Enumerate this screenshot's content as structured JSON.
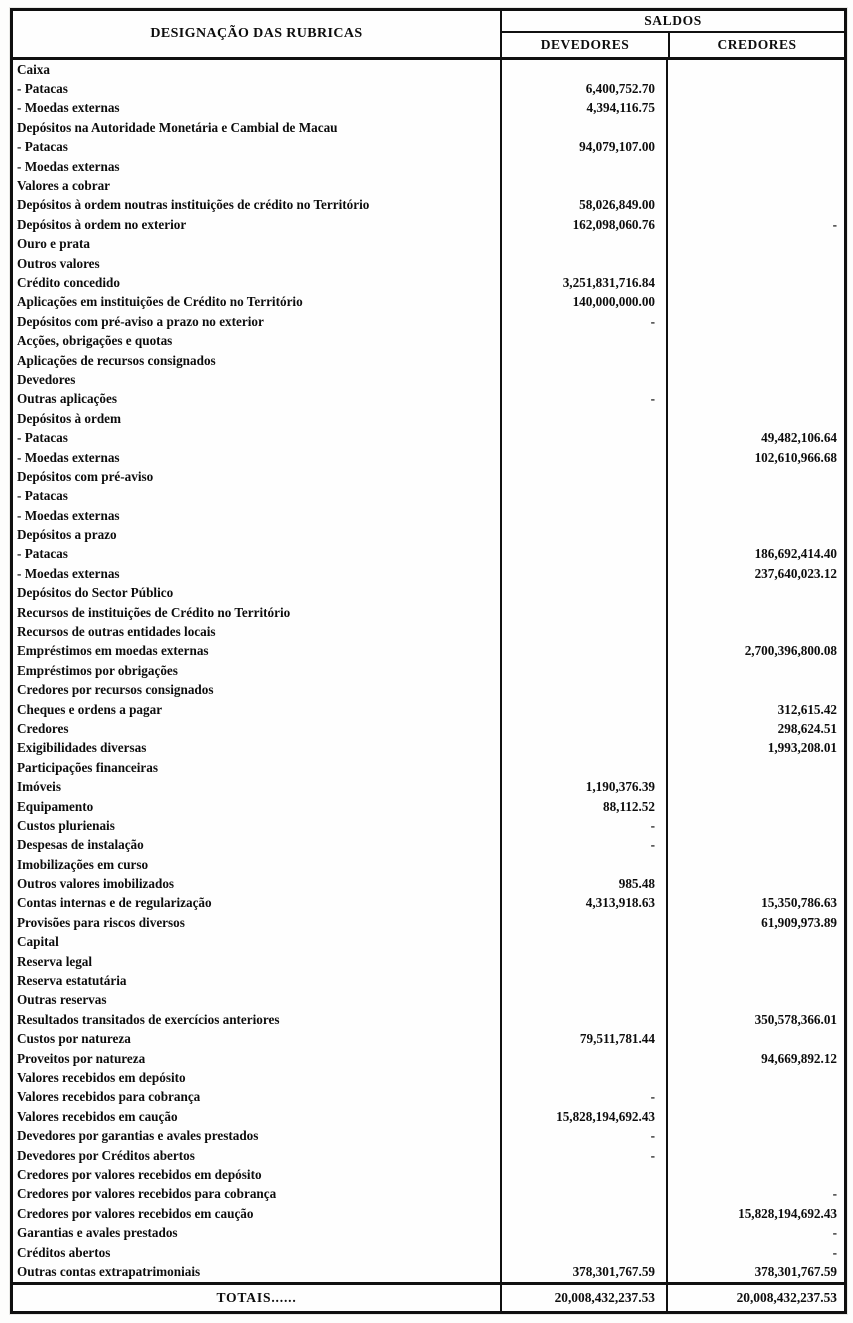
{
  "header": {
    "col_rubricas": "DESIGNAÇÃO DAS RUBRICAS",
    "col_saldos": "SALDOS",
    "col_devedores": "DEVEDORES",
    "col_credores": "CREDORES"
  },
  "rows": [
    {
      "label": "Caixa",
      "dev": "",
      "cred": ""
    },
    {
      "label": "- Patacas",
      "dev": "6,400,752.70",
      "cred": ""
    },
    {
      "label": "- Moedas externas",
      "dev": "4,394,116.75",
      "cred": ""
    },
    {
      "label": "Depósitos na Autoridade Monetária e Cambial de Macau",
      "dev": "",
      "cred": ""
    },
    {
      "label": "- Patacas",
      "dev": "94,079,107.00",
      "cred": ""
    },
    {
      "label": "- Moedas externas",
      "dev": "",
      "cred": ""
    },
    {
      "label": "Valores a cobrar",
      "dev": "",
      "cred": ""
    },
    {
      "label": "Depósitos à ordem noutras instituições de crédito no Território",
      "dev": "58,026,849.00",
      "cred": ""
    },
    {
      "label": "Depósitos à ordem no exterior",
      "dev": "162,098,060.76",
      "cred": "-"
    },
    {
      "label": "Ouro e prata",
      "dev": "",
      "cred": ""
    },
    {
      "label": "Outros valores",
      "dev": "",
      "cred": ""
    },
    {
      "label": "Crédito concedido",
      "dev": "3,251,831,716.84",
      "cred": ""
    },
    {
      "label": "Aplicações em instituições de Crédito no Território",
      "dev": "140,000,000.00",
      "cred": ""
    },
    {
      "label": "Depósitos com pré-aviso a prazo no exterior",
      "dev": "-",
      "cred": ""
    },
    {
      "label": "Acções, obrigações e quotas",
      "dev": "",
      "cred": ""
    },
    {
      "label": "Aplicações de recursos consignados",
      "dev": "",
      "cred": ""
    },
    {
      "label": "Devedores",
      "dev": "",
      "cred": ""
    },
    {
      "label": "Outras aplicações",
      "dev": "-",
      "cred": ""
    },
    {
      "label": "Depósitos à ordem",
      "dev": "",
      "cred": ""
    },
    {
      "label": "- Patacas",
      "dev": "",
      "cred": "49,482,106.64"
    },
    {
      "label": "- Moedas externas",
      "dev": "",
      "cred": "102,610,966.68"
    },
    {
      "label": "Depósitos com pré-aviso",
      "dev": "",
      "cred": ""
    },
    {
      "label": "- Patacas",
      "dev": "",
      "cred": ""
    },
    {
      "label": "- Moedas externas",
      "dev": "",
      "cred": ""
    },
    {
      "label": "Depósitos a prazo",
      "dev": "",
      "cred": ""
    },
    {
      "label": "- Patacas",
      "dev": "",
      "cred": "186,692,414.40"
    },
    {
      "label": "- Moedas externas",
      "dev": "",
      "cred": "237,640,023.12"
    },
    {
      "label": "Depósitos do Sector Público",
      "dev": "",
      "cred": ""
    },
    {
      "label": "Recursos de instituições de Crédito no Território",
      "dev": "",
      "cred": ""
    },
    {
      "label": "Recursos de outras entidades locais",
      "dev": "",
      "cred": ""
    },
    {
      "label": "Empréstimos em moedas externas",
      "dev": "",
      "cred": "2,700,396,800.08"
    },
    {
      "label": "Empréstimos por obrigações",
      "dev": "",
      "cred": ""
    },
    {
      "label": "Credores por recursos consignados",
      "dev": "",
      "cred": ""
    },
    {
      "label": "Cheques e ordens a pagar",
      "dev": "",
      "cred": "312,615.42"
    },
    {
      "label": "Credores",
      "dev": "",
      "cred": "298,624.51"
    },
    {
      "label": "Exigibilidades diversas",
      "dev": "",
      "cred": "1,993,208.01"
    },
    {
      "label": "Participações financeiras",
      "dev": "",
      "cred": ""
    },
    {
      "label": "Imóveis",
      "dev": "1,190,376.39",
      "cred": ""
    },
    {
      "label": "Equipamento",
      "dev": "88,112.52",
      "cred": ""
    },
    {
      "label": "Custos plurienais",
      "dev": "-",
      "cred": ""
    },
    {
      "label": "Despesas de instalação",
      "dev": "-",
      "cred": ""
    },
    {
      "label": "Imobilizações em curso",
      "dev": "",
      "cred": ""
    },
    {
      "label": "Outros valores imobilizados",
      "dev": "985.48",
      "cred": ""
    },
    {
      "label": "Contas internas e de regularização",
      "dev": "4,313,918.63",
      "cred": "15,350,786.63"
    },
    {
      "label": "Provisões para riscos diversos",
      "dev": "",
      "cred": "61,909,973.89"
    },
    {
      "label": "Capital",
      "dev": "",
      "cred": ""
    },
    {
      "label": "Reserva legal",
      "dev": "",
      "cred": ""
    },
    {
      "label": "Reserva estatutária",
      "dev": "",
      "cred": ""
    },
    {
      "label": "Outras reservas",
      "dev": "",
      "cred": ""
    },
    {
      "label": "Resultados transitados de exercícios anteriores",
      "dev": "",
      "cred": "350,578,366.01"
    },
    {
      "label": "Custos por natureza",
      "dev": "79,511,781.44",
      "cred": ""
    },
    {
      "label": "Proveitos por natureza",
      "dev": "",
      "cred": "94,669,892.12"
    },
    {
      "label": "Valores recebidos em depósito",
      "dev": "",
      "cred": ""
    },
    {
      "label": "Valores recebidos para cobrança",
      "dev": "-",
      "cred": ""
    },
    {
      "label": "Valores recebidos em caução",
      "dev": "15,828,194,692.43",
      "cred": ""
    },
    {
      "label": "Devedores por garantias e avales prestados",
      "dev": "-",
      "cred": ""
    },
    {
      "label": "Devedores por Créditos abertos",
      "dev": "-",
      "cred": ""
    },
    {
      "label": "Credores por valores recebidos em depósito",
      "dev": "",
      "cred": ""
    },
    {
      "label": "Credores por valores recebidos para cobrança",
      "dev": "",
      "cred": "-"
    },
    {
      "label": "Credores por valores recebidos em caução",
      "dev": "",
      "cred": "15,828,194,692.43"
    },
    {
      "label": "Garantias e avales prestados",
      "dev": "",
      "cred": "-"
    },
    {
      "label": "Créditos abertos",
      "dev": "",
      "cred": "-"
    },
    {
      "label": "Outras contas extrapatrimoniais",
      "dev": "378,301,767.59",
      "cred": "378,301,767.59"
    }
  ],
  "totals": {
    "label": "TOTAIS......",
    "dev": "20,008,432,237.53",
    "cred": "20,008,432,237.53"
  }
}
